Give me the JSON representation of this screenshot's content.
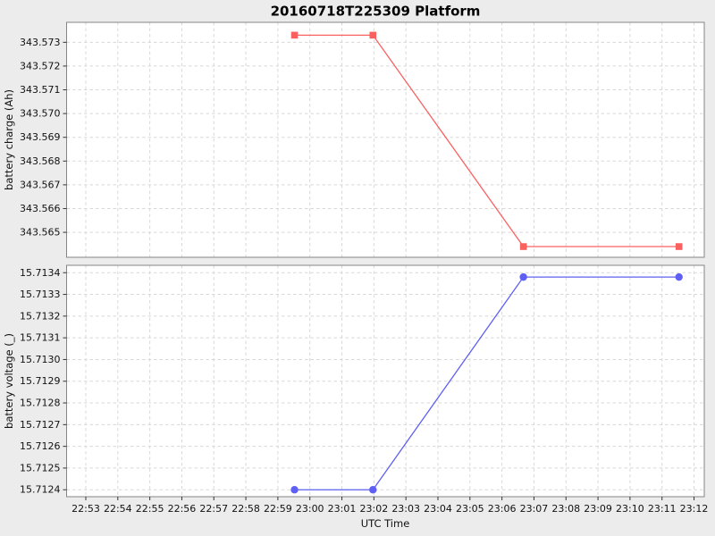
{
  "figure": {
    "title": "20160718T225309 Platform",
    "background_color": "#ececec",
    "plot_background_color": "#ffffff",
    "grid_color": "#d8d8d8",
    "frame_color": "#858585",
    "tick_color": "#333333",
    "text_color": "#111111"
  },
  "x_axis": {
    "label": "UTC Time",
    "xlim_minutes": [
      52.4,
      72.32
    ],
    "ticks": [
      {
        "label": "22:53",
        "m": 53
      },
      {
        "label": "22:54",
        "m": 54
      },
      {
        "label": "22:55",
        "m": 55
      },
      {
        "label": "22:56",
        "m": 56
      },
      {
        "label": "22:57",
        "m": 57
      },
      {
        "label": "22:58",
        "m": 58
      },
      {
        "label": "22:59",
        "m": 59
      },
      {
        "label": "23:00",
        "m": 60
      },
      {
        "label": "23:01",
        "m": 61
      },
      {
        "label": "23:02",
        "m": 62
      },
      {
        "label": "23:03",
        "m": 63
      },
      {
        "label": "23:04",
        "m": 64
      },
      {
        "label": "23:05",
        "m": 65
      },
      {
        "label": "23:06",
        "m": 66
      },
      {
        "label": "23:07",
        "m": 67
      },
      {
        "label": "23:08",
        "m": 68
      },
      {
        "label": "23:09",
        "m": 69
      },
      {
        "label": "23:10",
        "m": 70
      },
      {
        "label": "23:11",
        "m": 71
      },
      {
        "label": "23:12",
        "m": 72
      }
    ]
  },
  "chart_data": [
    {
      "id": "battery-charge",
      "type": "line",
      "title": "20160718T225309 Platform",
      "ylabel": "battery charge (Ah)",
      "ylim": [
        343.56395,
        343.57384
      ],
      "grid": true,
      "legend": "none",
      "yticks": [
        {
          "label": "343.565",
          "v": 343.565
        },
        {
          "label": "343.566",
          "v": 343.566
        },
        {
          "label": "343.567",
          "v": 343.567
        },
        {
          "label": "343.568",
          "v": 343.568
        },
        {
          "label": "343.569",
          "v": 343.569
        },
        {
          "label": "343.570",
          "v": 343.57
        },
        {
          "label": "343.571",
          "v": 343.571
        },
        {
          "label": "343.572",
          "v": 343.572
        },
        {
          "label": "343.573",
          "v": 343.573
        }
      ],
      "series": [
        {
          "name": "battery charge",
          "color": "#f96161",
          "marker": "square",
          "points": [
            {
              "t": "22:59:31",
              "m": 59.52,
              "v": 343.5733
            },
            {
              "t": "23:01:58",
              "m": 61.97,
              "v": 343.5733
            },
            {
              "t": "23:06:40",
              "m": 66.67,
              "v": 343.5644
            },
            {
              "t": "23:11:32",
              "m": 71.53,
              "v": 343.5644
            }
          ]
        }
      ]
    },
    {
      "id": "battery-voltage",
      "type": "line",
      "ylabel": "battery voltage (_)",
      "xlabel": "UTC Time",
      "ylim": [
        15.712368,
        15.713434
      ],
      "grid": true,
      "legend": "none",
      "yticks": [
        {
          "label": "15.7124",
          "v": 15.7124
        },
        {
          "label": "15.7125",
          "v": 15.7125
        },
        {
          "label": "15.7126",
          "v": 15.7126
        },
        {
          "label": "15.7127",
          "v": 15.7127
        },
        {
          "label": "15.7128",
          "v": 15.7128
        },
        {
          "label": "15.7129",
          "v": 15.7129
        },
        {
          "label": "15.7130",
          "v": 15.713
        },
        {
          "label": "15.7131",
          "v": 15.7131
        },
        {
          "label": "15.7132",
          "v": 15.7132
        },
        {
          "label": "15.7133",
          "v": 15.7133
        },
        {
          "label": "15.7134",
          "v": 15.7134
        }
      ],
      "series": [
        {
          "name": "battery voltage",
          "color": "#5f5ff3",
          "marker": "circle",
          "points": [
            {
              "t": "22:59:31",
              "m": 59.52,
              "v": 15.7124
            },
            {
              "t": "23:01:58",
              "m": 61.97,
              "v": 15.7124
            },
            {
              "t": "23:06:40",
              "m": 66.67,
              "v": 15.71338
            },
            {
              "t": "23:11:32",
              "m": 71.53,
              "v": 15.71338
            }
          ]
        }
      ]
    }
  ]
}
